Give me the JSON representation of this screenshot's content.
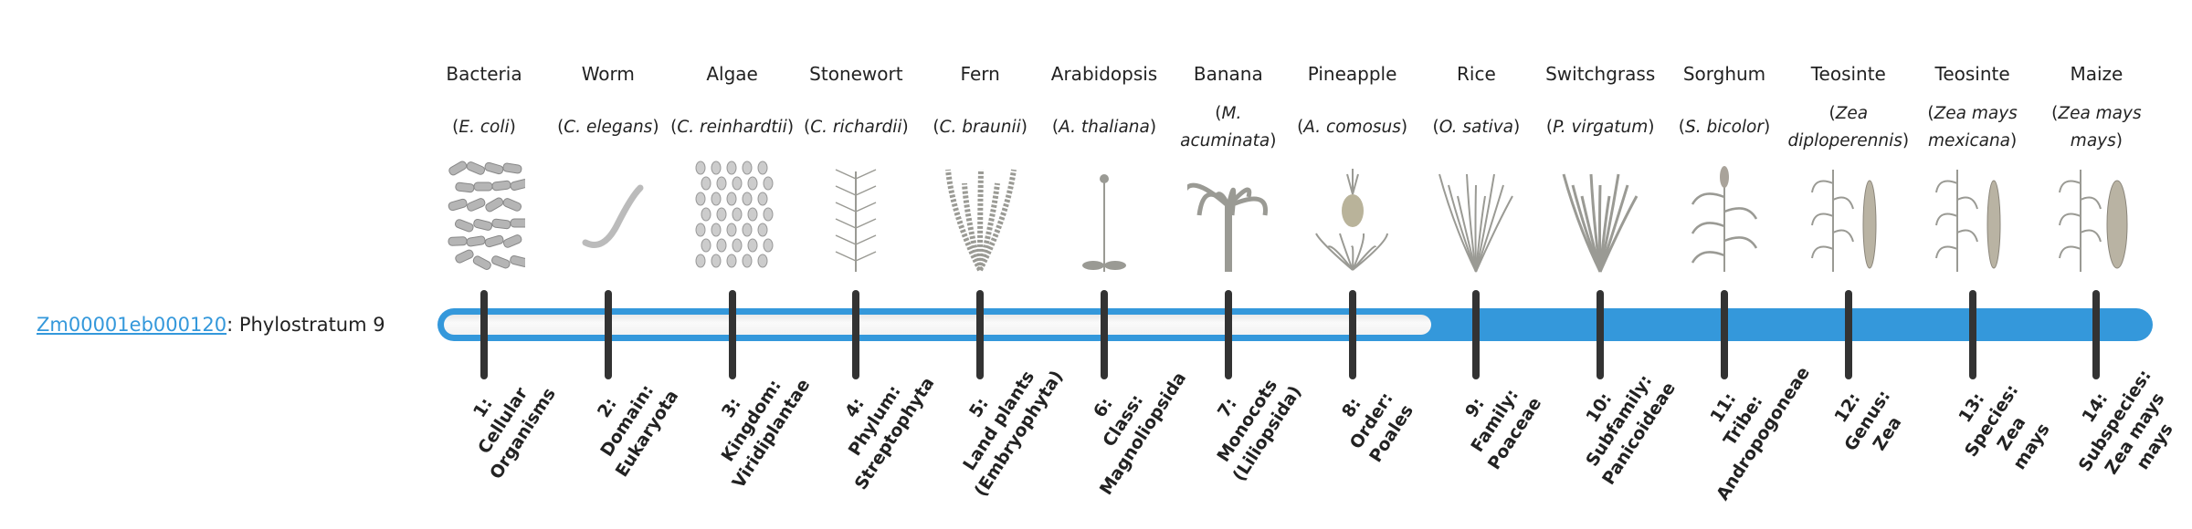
{
  "gene": {
    "id": "Zm00001eb000120",
    "suffix": ": Phylostratum 9",
    "stratum": 9
  },
  "colors": {
    "accent": "#3498db",
    "tick": "#333333",
    "track": "#f2f2f2"
  },
  "organisms": [
    {
      "common": "Bacteria",
      "sci": "E. coli",
      "icon": "bacteria-rods"
    },
    {
      "common": "Worm",
      "sci": "C. elegans",
      "icon": "worm"
    },
    {
      "common": "Algae",
      "sci": "C. reinhardtii",
      "icon": "algae-cells"
    },
    {
      "common": "Stonewort",
      "sci": "C. richardii",
      "icon": "stonewort"
    },
    {
      "common": "Fern",
      "sci": "C. braunii",
      "icon": "fern"
    },
    {
      "common": "Arabidopsis",
      "sci": "A. thaliana",
      "icon": "arabidopsis"
    },
    {
      "common": "Banana",
      "sci": "M. acuminata",
      "icon": "banana-plant"
    },
    {
      "common": "Pineapple",
      "sci": "A. comosus",
      "icon": "pineapple"
    },
    {
      "common": "Rice",
      "sci": "O. sativa",
      "icon": "rice"
    },
    {
      "common": "Switchgrass",
      "sci": "P. virgatum",
      "icon": "switchgrass"
    },
    {
      "common": "Sorghum",
      "sci": "S. bicolor",
      "icon": "sorghum"
    },
    {
      "common": "Teosinte",
      "sci": "Zea diploperennis",
      "icon": "teosinte"
    },
    {
      "common": "Teosinte",
      "sci": "Zea mays mexicana",
      "icon": "teosinte"
    },
    {
      "common": "Maize",
      "sci": "Zea mays mays",
      "icon": "maize"
    }
  ],
  "strata": [
    [
      "1:",
      "Cellular",
      "Organisms"
    ],
    [
      "2:",
      "Domain:",
      "Eukaryota"
    ],
    [
      "3:",
      "Kingdom:",
      "Viridiplantae"
    ],
    [
      "4:",
      "Phylum:",
      "Streptophyta"
    ],
    [
      "5:",
      "Land plants",
      "(Embryophyta)"
    ],
    [
      "6:",
      "Class:",
      "Magnoliopsida"
    ],
    [
      "7:",
      "Monocots",
      "(Liliopsida)"
    ],
    [
      "8:",
      "Order:",
      "Poales"
    ],
    [
      "9:",
      "Family:",
      "Poaceae"
    ],
    [
      "10:",
      "Subfamily:",
      "Panicoideae"
    ],
    [
      "11:",
      "Tribe:",
      "Andropogoneae"
    ],
    [
      "12:",
      "Genus:",
      "Zea"
    ],
    [
      "13:",
      "Species:",
      "Zea",
      "mays"
    ],
    [
      "14:",
      "Subspecies:",
      "Zea mays",
      "mays"
    ]
  ]
}
